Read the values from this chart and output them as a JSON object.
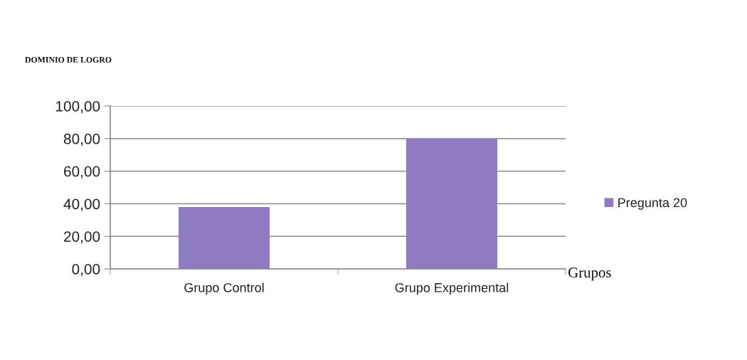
{
  "chart_data": {
    "type": "bar",
    "title": "DOMINIO DE LOGRO",
    "xlabel": "Grupos",
    "categories": [
      "Grupo Control",
      "Grupo Experimental"
    ],
    "series": [
      {
        "name": "Pregunta 20",
        "color": "#8f7bc2",
        "values": [
          38,
          80
        ]
      }
    ],
    "ylim": [
      0,
      100
    ],
    "yticks": [
      {
        "value": 0,
        "label": "0,00"
      },
      {
        "value": 20,
        "label": "20,00"
      },
      {
        "value": 40,
        "label": "40,00"
      },
      {
        "value": 60,
        "label": "60,00"
      },
      {
        "value": 80,
        "label": "80,00"
      },
      {
        "value": 100,
        "label": "100,00"
      }
    ],
    "grid": "y",
    "legend": "right"
  }
}
